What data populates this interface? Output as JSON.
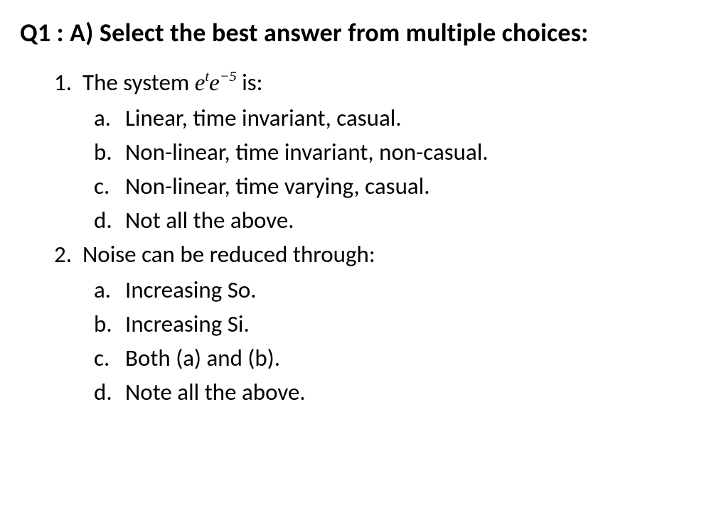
{
  "heading": "Q1 : A) Select the best answer from multiple choices:",
  "questions": [
    {
      "number": "1.",
      "stem_prefix": "The system ",
      "math": {
        "base1": "e",
        "sup1": "t",
        "base2": "e",
        "sup2": "−5"
      },
      "stem_suffix": " is:",
      "choices": [
        {
          "letter": "a.",
          "text": "Linear, time invariant, casual."
        },
        {
          "letter": "b.",
          "text": "Non-linear, time invariant, non-casual."
        },
        {
          "letter": "c.",
          "text": "Non-linear, time varying, casual."
        },
        {
          "letter": "d.",
          "text": "Not all the above."
        }
      ]
    },
    {
      "number": "2.",
      "stem_prefix": "Noise can be reduced through:",
      "math": null,
      "stem_suffix": "",
      "choices": [
        {
          "letter": "a.",
          "text": "Increasing So."
        },
        {
          "letter": "b.",
          "text": "Increasing Si."
        },
        {
          "letter": "c.",
          "text": "Both (a) and (b)."
        },
        {
          "letter": "d.",
          "text": "Note all the above."
        }
      ]
    }
  ],
  "style": {
    "text_color": "#000000",
    "background": "#ffffff",
    "heading_fontsize": 36,
    "body_fontsize": 33
  }
}
